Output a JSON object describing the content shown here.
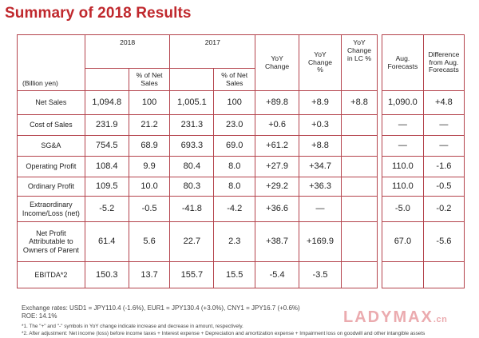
{
  "title": "Summary of 2018 Results",
  "header": {
    "year_2018": "2018",
    "year_2017": "2017",
    "pct_sales_2018": "% of Net Sales",
    "pct_sales_2017": "% of Net Sales",
    "yoy_change": "YoY Change",
    "yoy_change_pct": "YoY Change %",
    "yoy_change_lc": "YoY Change in LC %",
    "unit": "(Billion yen)",
    "aug_forecasts": "Aug. Forecasts",
    "diff_forecasts": "Difference from Aug. Forecasts"
  },
  "rows": [
    {
      "label": "Net Sales",
      "v2018": "1,094.8",
      "p2018": "100",
      "v2017": "1,005.1",
      "p2017": "100",
      "yoy": "+89.8",
      "yoy_pct": "+8.9",
      "yoy_lc": "+8.8",
      "aug": "1,090.0",
      "diff": "+4.8"
    },
    {
      "label": "Cost of Sales",
      "v2018": "231.9",
      "p2018": "21.2",
      "v2017": "231.3",
      "p2017": "23.0",
      "yoy": "+0.6",
      "yoy_pct": "+0.3",
      "yoy_lc": "",
      "aug": "—",
      "diff": "—"
    },
    {
      "label": "SG&A",
      "v2018": "754.5",
      "p2018": "68.9",
      "v2017": "693.3",
      "p2017": "69.0",
      "yoy": "+61.2",
      "yoy_pct": "+8.8",
      "yoy_lc": "",
      "aug": "—",
      "diff": "—"
    },
    {
      "label": "Operating Profit",
      "v2018": "108.4",
      "p2018": "9.9",
      "v2017": "80.4",
      "p2017": "8.0",
      "yoy": "+27.9",
      "yoy_pct": "+34.7",
      "yoy_lc": "",
      "aug": "110.0",
      "diff": "-1.6"
    },
    {
      "label": "Ordinary Profit",
      "v2018": "109.5",
      "p2018": "10.0",
      "v2017": "80.3",
      "p2017": "8.0",
      "yoy": "+29.2",
      "yoy_pct": "+36.3",
      "yoy_lc": "",
      "aug": "110.0",
      "diff": "-0.5"
    },
    {
      "label": "Extraordinary Income/Loss (net)",
      "v2018": "-5.2",
      "p2018": "-0.5",
      "v2017": "-41.8",
      "p2017": "-4.2",
      "yoy": "+36.6",
      "yoy_pct": "—",
      "yoy_lc": "",
      "aug": "-5.0",
      "diff": "-0.2"
    },
    {
      "label": "Net Profit Attributable to Owners of Parent",
      "v2018": "61.4",
      "p2018": "5.6",
      "v2017": "22.7",
      "p2017": "2.3",
      "yoy": "+38.7",
      "yoy_pct": "+169.9",
      "yoy_lc": "",
      "aug": "67.0",
      "diff": "-5.6"
    },
    {
      "label": "EBITDA*2",
      "v2018": "150.3",
      "p2018": "13.7",
      "v2017": "155.7",
      "p2017": "15.5",
      "yoy": "-5.4",
      "yoy_pct": "-3.5",
      "yoy_lc": "",
      "aug": "",
      "diff": ""
    }
  ],
  "footer": {
    "exchange": "Exchange rates: USD1 = JPY110.4 (-1.6%), EUR1 = JPY130.4 (+3.0%), CNY1 = JPY16.7 (+0.6%)",
    "roe": "ROE: 14.1%",
    "note1": "*1. The \"+\" and \"-\" symbols in YoY change indicate increase and decrease in amount, respectively.",
    "note2": "*2. After adjustment: Net income (loss) before income taxes + Interest expense + Depreciation and amortization expense + Impairment loss on goodwill and other intangible assets"
  },
  "watermark": {
    "main": "LADYMAX",
    "suffix": ".cn"
  }
}
